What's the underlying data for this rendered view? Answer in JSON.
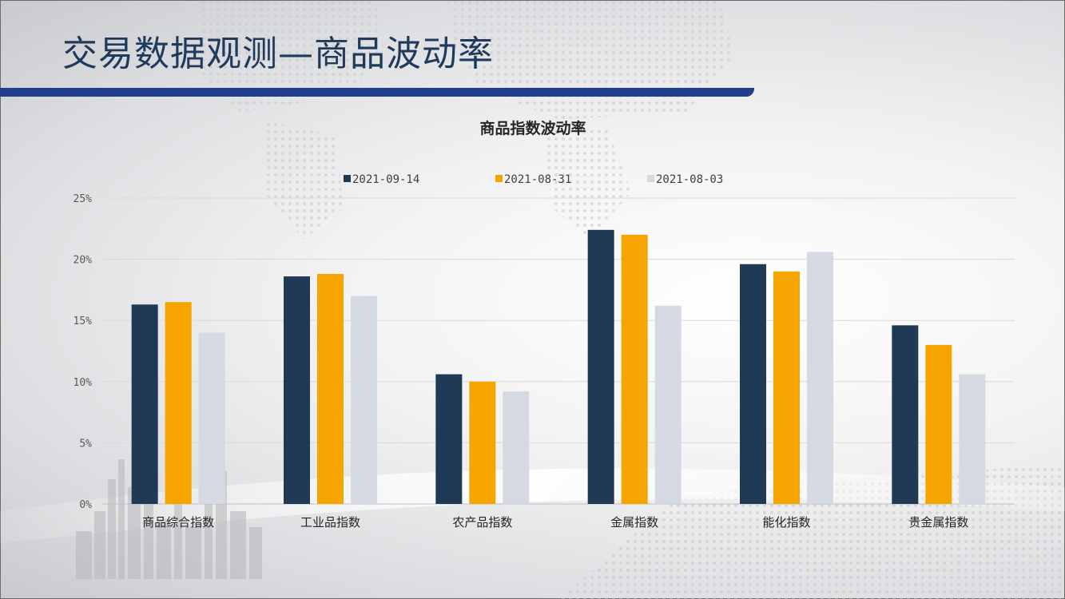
{
  "slide": {
    "title": "交易数据观测—商品波动率"
  },
  "colors": {
    "title_text": "#203a5c",
    "title_bar": "#1f3f8a",
    "gridline": "#d9d9d9"
  },
  "chart_data": {
    "type": "bar",
    "title": "商品指数波动率",
    "categories": [
      "商品综合指数",
      "工业品指数",
      "农产品指数",
      "金属指数",
      "能化指数",
      "贵金属指数"
    ],
    "series": [
      {
        "name": "2021-09-14",
        "color": "#203a55",
        "values": [
          16.3,
          18.6,
          10.6,
          22.4,
          19.6,
          14.6
        ]
      },
      {
        "name": "2021-08-31",
        "color": "#f6a400",
        "values": [
          16.5,
          18.8,
          10.0,
          22.0,
          19.0,
          13.0
        ]
      },
      {
        "name": "2021-08-03",
        "color": "#d5dae2",
        "values": [
          14.0,
          17.0,
          9.2,
          16.2,
          20.6,
          10.6
        ]
      }
    ],
    "ylim": [
      0,
      25
    ],
    "yticks": [
      "0%",
      "5%",
      "10%",
      "15%",
      "20%",
      "25%"
    ],
    "ytick_values": [
      0,
      5,
      10,
      15,
      20,
      25
    ],
    "xlabel": "",
    "ylabel": "",
    "grid": true,
    "legend_position": "top-center"
  }
}
